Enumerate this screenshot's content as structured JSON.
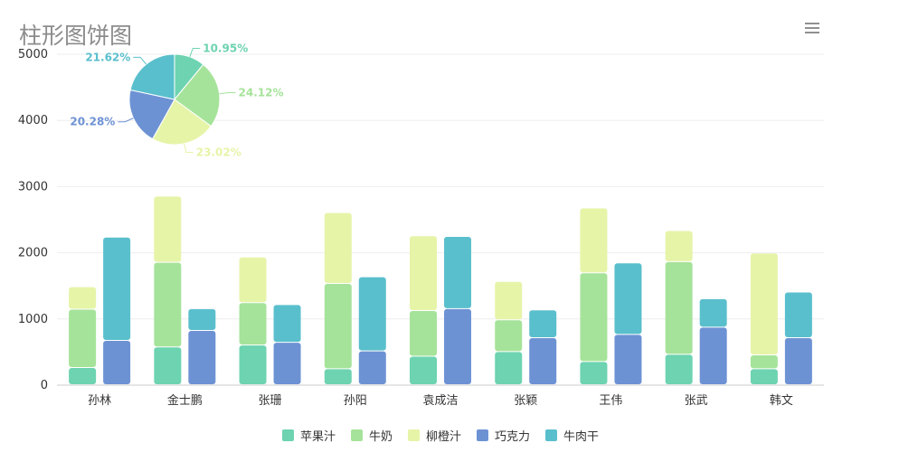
{
  "title": "柱形图饼图",
  "toolbar": {
    "menu_icon": "hamburger-menu-icon"
  },
  "colors": {
    "苹果汁": "#6dd3b0",
    "牛奶": "#a6e39a",
    "柳橙汁": "#e6f4a8",
    "巧克力": "#6d92d4",
    "牛肉干": "#5abfcc"
  },
  "chart_data": [
    {
      "type": "bar",
      "stacked": true,
      "categories": [
        "孙林",
        "金士鹏",
        "张珊",
        "孙阳",
        "袁成洁",
        "张颖",
        "王伟",
        "张武",
        "韩文"
      ],
      "ylim": [
        0,
        5000
      ],
      "yticks": [
        "0",
        "1000",
        "2000",
        "3000",
        "4000",
        "5000"
      ],
      "grid": true,
      "legend": [
        "苹果汁",
        "牛奶",
        "柳橙汁",
        "巧克力",
        "牛肉干"
      ],
      "legend_position": "bottom",
      "stacks": [
        {
          "stack": "A",
          "series": [
            {
              "name": "苹果汁",
              "values": [
                260,
                570,
                600,
                240,
                430,
                500,
                350,
                460,
                240
              ]
            },
            {
              "name": "牛奶",
              "values": [
                880,
                1280,
                640,
                1290,
                690,
                480,
                1340,
                1400,
                210
              ]
            },
            {
              "name": "柳橙汁",
              "values": [
                340,
                1000,
                690,
                1070,
                1130,
                580,
                980,
                470,
                1540
              ]
            }
          ]
        },
        {
          "stack": "B",
          "series": [
            {
              "name": "巧克力",
              "values": [
                670,
                820,
                640,
                510,
                1150,
                710,
                760,
                870,
                710
              ]
            },
            {
              "name": "牛肉干",
              "values": [
                1560,
                330,
                570,
                1120,
                1090,
                420,
                1080,
                430,
                690
              ]
            }
          ]
        }
      ]
    },
    {
      "type": "pie",
      "slices": [
        {
          "name": "苹果汁",
          "value": 10.95,
          "label": "10.95%"
        },
        {
          "name": "牛奶",
          "value": 24.12,
          "label": "24.12%"
        },
        {
          "name": "柳橙汁",
          "value": 23.02,
          "label": "23.02%"
        },
        {
          "name": "巧克力",
          "value": 20.28,
          "label": "20.28%"
        },
        {
          "name": "牛肉干",
          "value": 21.62,
          "label": "21.62%"
        }
      ]
    }
  ]
}
